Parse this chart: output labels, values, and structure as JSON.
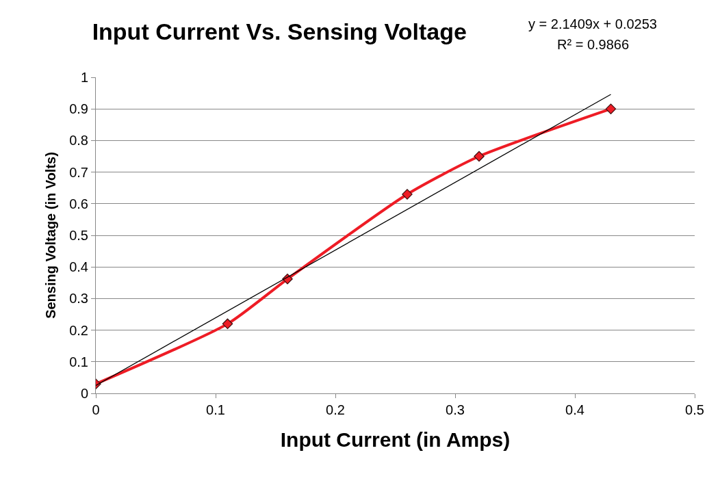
{
  "chart_data": {
    "type": "line",
    "title": "Input Current Vs. Sensing Voltage",
    "xlabel": "Input Current (in Amps)",
    "ylabel": "Sensing Voltage (in Volts)",
    "annotations": [
      "y = 2.1409x + 0.0253",
      "R² = 0.9866"
    ],
    "series": [
      {
        "color": "#ee1c25",
        "x": [
          0,
          0.11,
          0.16,
          0.26,
          0.32,
          0.43
        ],
        "values": [
          0.03,
          0.22,
          0.362,
          0.63,
          0.75,
          0.9
        ],
        "marker": "diamond",
        "line_style": "solid"
      },
      {
        "color": "#000000",
        "x": [
          0,
          0.43
        ],
        "values": [
          0.025,
          0.946
        ],
        "marker": "none",
        "line_style": "solid"
      }
    ],
    "xlim": [
      0,
      0.5
    ],
    "xticks": [
      0,
      0.1,
      0.2,
      0.3,
      0.4,
      0.5
    ],
    "ylim": [
      0,
      1
    ],
    "yticks": [
      0,
      0.1,
      0.2,
      0.3,
      0.4,
      0.5,
      0.6,
      0.7,
      0.8,
      0.9,
      1
    ],
    "grid": "y"
  }
}
